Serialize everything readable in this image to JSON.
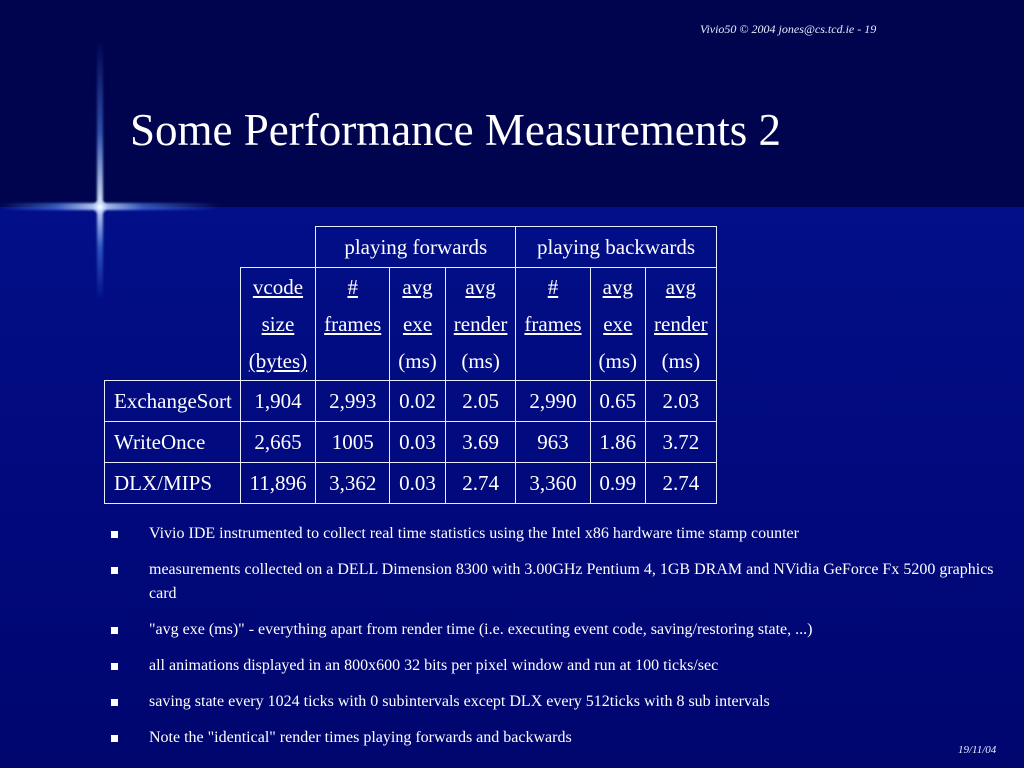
{
  "header": {
    "credit": "Vivio50 © 2004 jones@cs.tcd.ie - 19"
  },
  "title": "Some Performance Measurements 2",
  "table": {
    "group_headers": [
      "playing forwards",
      "playing backwards"
    ],
    "column_headers": [
      [
        "vcode",
        "size",
        "(bytes)"
      ],
      [
        "#",
        "frames"
      ],
      [
        "avg",
        "exe",
        "(ms)"
      ],
      [
        "avg",
        "render",
        "(ms)"
      ],
      [
        "#",
        "frames"
      ],
      [
        "avg",
        "exe",
        "(ms)"
      ],
      [
        "avg",
        "render",
        "(ms)"
      ]
    ],
    "rows": [
      {
        "name": "ExchangeSort",
        "cells": [
          "1,904",
          "2,993",
          "0.02",
          "2.05",
          "2,990",
          "0.65",
          "2.03"
        ]
      },
      {
        "name": "WriteOnce",
        "cells": [
          "2,665",
          "1005",
          "0.03",
          "3.69",
          "963",
          "1.86",
          "3.72"
        ]
      },
      {
        "name": "DLX/MIPS",
        "cells": [
          "11,896",
          "3,362",
          "0.03",
          "2.74",
          "3,360",
          "0.99",
          "2.74"
        ]
      }
    ]
  },
  "notes": [
    "Vivio IDE instrumented to collect real time statistics using the Intel x86 hardware time stamp counter",
    "measurements collected on a DELL Dimension 8300  with 3.00GHz Pentium 4, 1GB DRAM and NVidia GeForce Fx 5200 graphics card",
    "\"avg exe (ms)\" - everything apart from render time (i.e. executing event code, saving/restoring state, ...)",
    "all animations displayed in an 800x600 32 bits per pixel window and run at 100 ticks/sec",
    "saving state every 1024 ticks with 0 subintervals except DLX every 512ticks with 8 sub intervals",
    "Note the \"identical\" render times playing forwards and backwards"
  ],
  "footer": {
    "date": "19/11/04"
  },
  "colors": {
    "top_band": "#00044f",
    "body_band": "#020f88",
    "text": "#ffffff"
  }
}
